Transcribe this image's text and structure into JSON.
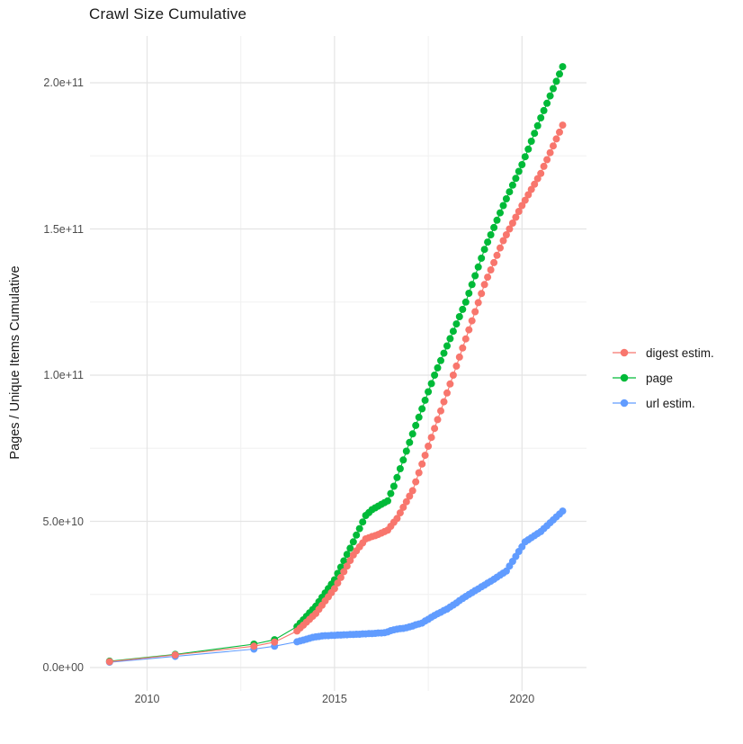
{
  "figure": {
    "background": "#FFFFFF"
  },
  "legend": {
    "items": [
      {
        "label": "digest estim.",
        "color": "#F8766D"
      },
      {
        "label": "page",
        "color": "#00BA38"
      },
      {
        "label": "url estim.",
        "color": "#619CFF"
      }
    ]
  },
  "chart_data": {
    "type": "line",
    "title": "Crawl Size Cumulative",
    "xlabel": "",
    "ylabel": "Pages / Unique Items Cumulative",
    "legend_position": "right",
    "grid": "major and minor gridlines, light grey on white",
    "y_unit": "values stored in billions (1e9 items)",
    "xlim": [
      2008.476,
      2021.72
    ],
    "ylim_billions": [
      -8,
      216
    ],
    "x_ticks": [
      {
        "label": "2010",
        "year": 2010
      },
      {
        "label": "2015",
        "year": 2015
      },
      {
        "label": "2020",
        "year": 2020
      }
    ],
    "x_minor_ticks": [
      2012.5,
      2017.5
    ],
    "y_ticks": [
      {
        "label": "0.0e+00",
        "billions": 0
      },
      {
        "label": "5.0e+10",
        "billions": 50
      },
      {
        "label": "1.0e+11",
        "billions": 100
      },
      {
        "label": "1.5e+11",
        "billions": 150
      },
      {
        "label": "2.0e+11",
        "billions": 200
      }
    ],
    "y_minor_ticks": [
      25,
      75,
      125,
      175
    ],
    "x": [
      2009.0,
      2010.75,
      2012.85,
      2013.4,
      2014.0,
      2014.0833,
      2014.1667,
      2014.25,
      2014.3333,
      2014.4167,
      2014.5,
      2014.5833,
      2014.6667,
      2014.75,
      2014.8333,
      2014.9167,
      2015.0,
      2015.0833,
      2015.1667,
      2015.25,
      2015.3333,
      2015.4167,
      2015.5,
      2015.5833,
      2015.6667,
      2015.75,
      2015.8333,
      2015.9167,
      2016.0,
      2016.0833,
      2016.1667,
      2016.25,
      2016.3333,
      2016.4167,
      2016.5,
      2016.5833,
      2016.6667,
      2016.75,
      2016.8333,
      2016.9167,
      2017.0,
      2017.0833,
      2017.1667,
      2017.25,
      2017.3333,
      2017.4167,
      2017.5,
      2017.5833,
      2017.6667,
      2017.75,
      2017.8333,
      2017.9167,
      2018.0,
      2018.0833,
      2018.1667,
      2018.25,
      2018.3333,
      2018.4167,
      2018.5,
      2018.5833,
      2018.6667,
      2018.75,
      2018.8333,
      2018.9167,
      2019.0,
      2019.0833,
      2019.1667,
      2019.25,
      2019.3333,
      2019.4167,
      2019.5,
      2019.5833,
      2019.6667,
      2019.75,
      2019.8333,
      2019.9167,
      2020.0,
      2020.0833,
      2020.1667,
      2020.25,
      2020.3333,
      2020.4167,
      2020.5,
      2020.5833,
      2020.6667,
      2020.75,
      2020.8333,
      2020.9167,
      2021.0,
      2021.0833
    ],
    "series": [
      {
        "name": "url estim.",
        "color": "#619CFF",
        "legend_order": 3,
        "y_billions": [
          1.8,
          3.8,
          6.3,
          7.3,
          8.8,
          9.1,
          9.4,
          9.7,
          10.0,
          10.3,
          10.5,
          10.6,
          10.8,
          10.9,
          10.9,
          11.0,
          11.0,
          11.1,
          11.1,
          11.2,
          11.2,
          11.3,
          11.3,
          11.4,
          11.4,
          11.5,
          11.5,
          11.6,
          11.6,
          11.7,
          11.8,
          11.8,
          11.9,
          12.2,
          12.6,
          12.9,
          13.1,
          13.3,
          13.4,
          13.6,
          13.9,
          14.2,
          14.6,
          14.9,
          15.2,
          15.9,
          16.5,
          17.2,
          17.8,
          18.4,
          18.9,
          19.5,
          20.0,
          20.7,
          21.4,
          22.1,
          22.9,
          23.6,
          24.3,
          25.0,
          25.6,
          26.3,
          26.9,
          27.6,
          28.2,
          28.9,
          29.5,
          30.2,
          30.9,
          31.6,
          32.3,
          33.0,
          34.7,
          36.3,
          38.0,
          39.7,
          41.3,
          43.0,
          43.7,
          44.4,
          45.1,
          45.8,
          46.5,
          47.5,
          48.5,
          49.5,
          50.5,
          51.5,
          52.5,
          53.5
        ]
      },
      {
        "name": "page",
        "color": "#00BA38",
        "legend_order": 2,
        "y_billions": [
          2.2,
          4.5,
          8.0,
          9.5,
          14.0,
          15.2,
          16.3,
          17.5,
          18.7,
          19.8,
          21.0,
          22.5,
          24.0,
          25.5,
          27.0,
          28.5,
          30.0,
          32.2,
          34.3,
          36.5,
          38.7,
          40.8,
          43.0,
          45.3,
          47.5,
          49.8,
          52.0,
          53.0,
          54.0,
          54.6,
          55.2,
          55.8,
          56.4,
          57.0,
          59.5,
          62.0,
          65.0,
          68.0,
          71.0,
          74.0,
          77.0,
          79.9,
          82.8,
          85.6,
          88.5,
          91.4,
          94.3,
          97.1,
          100.0,
          102.5,
          105.0,
          107.5,
          110.0,
          112.5,
          115.0,
          117.5,
          120.0,
          122.5,
          125.0,
          128.0,
          131.0,
          134.0,
          137.0,
          140.0,
          143.0,
          145.5,
          148.0,
          150.5,
          153.0,
          155.5,
          158.0,
          160.3,
          162.7,
          165.0,
          167.3,
          169.7,
          172.0,
          174.7,
          177.3,
          180.0,
          182.7,
          185.3,
          188.0,
          190.5,
          193.0,
          195.5,
          198.0,
          200.5,
          203.0,
          205.5
        ]
      },
      {
        "name": "digest estim.",
        "color": "#F8766D",
        "legend_order": 1,
        "y_billions": [
          2.0,
          4.3,
          7.3,
          8.7,
          12.5,
          13.5,
          14.5,
          15.5,
          16.5,
          17.5,
          18.5,
          19.9,
          21.3,
          22.8,
          24.2,
          25.6,
          27.0,
          28.9,
          30.8,
          32.8,
          34.7,
          36.6,
          38.5,
          39.9,
          41.3,
          42.6,
          44.0,
          44.4,
          44.8,
          45.1,
          45.5,
          46.0,
          46.5,
          47.0,
          48.3,
          49.7,
          51.0,
          52.9,
          54.8,
          56.7,
          58.6,
          60.5,
          63.5,
          66.6,
          69.6,
          72.6,
          75.7,
          78.7,
          81.8,
          84.8,
          87.8,
          90.9,
          93.9,
          97.0,
          100.0,
          103.1,
          106.2,
          109.3,
          112.4,
          115.5,
          118.6,
          121.7,
          124.8,
          127.9,
          131.0,
          133.5,
          136.0,
          138.5,
          141.0,
          143.5,
          146.0,
          148.0,
          150.0,
          152.0,
          154.0,
          156.0,
          158.0,
          159.8,
          161.7,
          163.5,
          165.3,
          167.2,
          169.0,
          171.4,
          173.7,
          176.1,
          178.4,
          180.8,
          183.1,
          185.5
        ]
      }
    ]
  }
}
